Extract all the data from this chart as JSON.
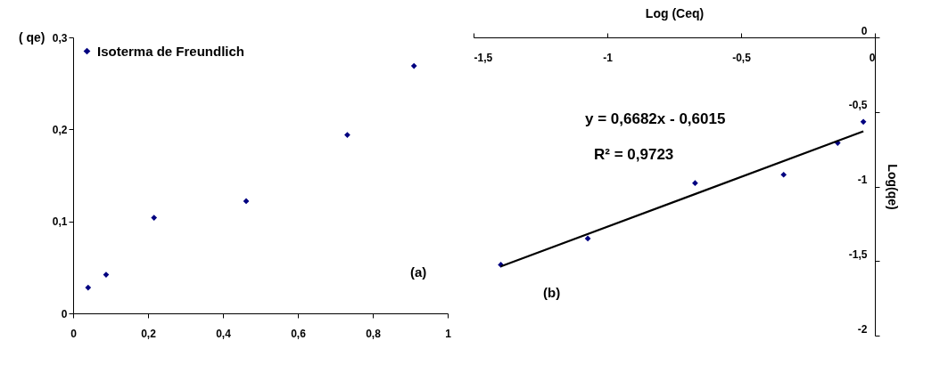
{
  "chart_data": [
    {
      "type": "scatter",
      "ylabel": "( qe)",
      "annotations": [
        "(a)"
      ],
      "x": [
        0.04,
        0.088,
        0.216,
        0.462,
        0.732,
        0.91
      ],
      "series": [
        {
          "name": "Isoterma de Freundlich",
          "color": "#000080",
          "values": [
            0.028,
            0.042,
            0.104,
            0.122,
            0.194,
            0.269
          ]
        }
      ],
      "xlim": [
        0,
        1
      ],
      "xticks": [
        0,
        {
          "value": 0.2,
          "label": "0,2"
        },
        {
          "value": 0.4,
          "label": "0,4"
        },
        {
          "value": 0.6,
          "label": "0,6"
        },
        {
          "value": 0.8,
          "label": "0,8"
        },
        1
      ],
      "ylim": [
        0,
        0.3
      ],
      "yticks": [
        0,
        {
          "value": 0.1,
          "label": "0,1"
        },
        {
          "value": 0.2,
          "label": "0,2"
        },
        {
          "value": 0.3,
          "label": "0,3"
        }
      ],
      "marker": "diamond",
      "legend": "top left"
    },
    {
      "type": "scatter",
      "xlabel": "Log (Ceq)",
      "ylabel": "Log(qe)",
      "annotations": [
        "y = 0,6682x - 0,6015",
        "R² = 0,9723",
        "(b)"
      ],
      "x": [
        -1.398,
        -1.073,
        -0.672,
        -0.341,
        -0.139,
        -0.043
      ],
      "series": [
        {
          "color": "#000080",
          "values": [
            -1.525,
            -1.349,
            -0.977,
            -0.921,
            -0.708,
            -0.566
          ]
        },
        {
          "type": "line",
          "marker": "none",
          "color": "#000000",
          "x": [
            -1.398,
            -0.043
          ],
          "values": [
            -1.536,
            -0.63
          ]
        }
      ],
      "xlim": [
        -1.5,
        0
      ],
      "xticks": [
        {
          "value": -1.5,
          "label": "-1,5"
        },
        -1,
        {
          "value": -0.5,
          "label": "-0,5"
        },
        0
      ],
      "ylim": [
        -2,
        0
      ],
      "yticks": [
        -2,
        {
          "value": -1.5,
          "label": "-1,5"
        },
        -1,
        {
          "value": -0.5,
          "label": "-0,5"
        },
        0
      ],
      "marker": "diamond"
    }
  ]
}
